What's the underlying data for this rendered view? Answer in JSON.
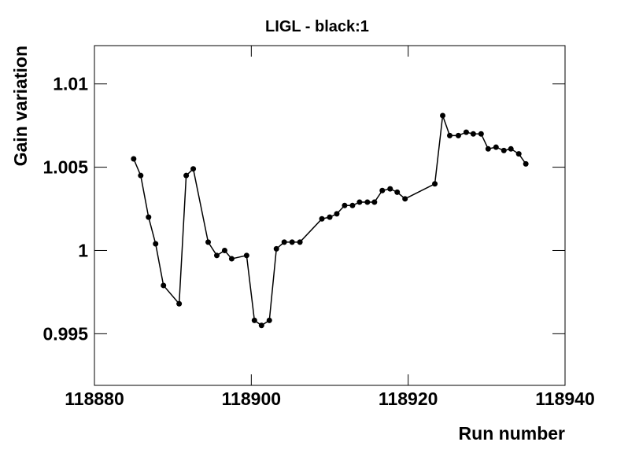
{
  "chart_data": {
    "type": "line",
    "title": "LIGL - black:1",
    "x_label": "Run number",
    "y_label": "Gain variation",
    "x": [
      118885.0,
      118885.9,
      118886.9,
      118887.8,
      118888.8,
      118890.8,
      118891.7,
      118892.6,
      118894.5,
      118895.6,
      118896.6,
      118897.5,
      118899.4,
      118900.4,
      118901.3,
      118902.3,
      118903.2,
      118904.2,
      118905.2,
      118906.2,
      118909.0,
      118910.0,
      118910.9,
      118911.9,
      118912.9,
      118913.8,
      118914.8,
      118915.7,
      118916.7,
      118917.7,
      118918.6,
      118919.6,
      118923.4,
      118924.4,
      118925.3,
      118926.4,
      118927.4,
      118928.3,
      118929.3,
      118930.2,
      118931.2,
      118932.2,
      118933.1,
      118934.1,
      118935.0
    ],
    "series": [
      {
        "color": "#000000",
        "values": [
          1.0055,
          1.0045,
          1.002,
          1.0004,
          0.9979,
          0.9968,
          1.0045,
          1.0049,
          1.0005,
          0.9997,
          1.0,
          0.9995,
          0.9997,
          0.9958,
          0.9955,
          0.9958,
          1.0001,
          1.0005,
          1.0005,
          1.0005,
          1.0019,
          1.002,
          1.0022,
          1.0027,
          1.0027,
          1.0029,
          1.0029,
          1.0029,
          1.0036,
          1.0037,
          1.0035,
          1.0031,
          1.004,
          1.0081,
          1.0069,
          1.0069,
          1.0071,
          1.007,
          1.007,
          1.0061,
          1.0062,
          1.006,
          1.0061,
          1.0058,
          1.0052
        ]
      }
    ],
    "xlim": [
      118880,
      118940
    ],
    "xticks": [
      118880,
      118900,
      118920,
      118940
    ],
    "ylim": [
      0.9919,
      1.0123
    ],
    "yticks": [
      0.995,
      1,
      1.005,
      1.01
    ]
  }
}
